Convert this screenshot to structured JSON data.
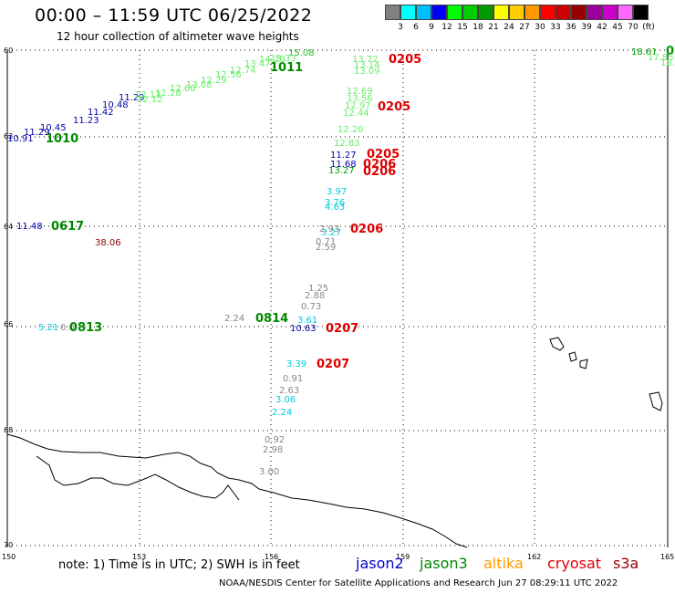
{
  "title": "00:00 – 11:59 UTC 06/25/2022",
  "subtitle": "12 hour collection of altimeter wave heights",
  "scale": {
    "colors": [
      "#808080",
      "#00ffff",
      "#00bfff",
      "#0000ff",
      "#00ff00",
      "#00cc00",
      "#009900",
      "#ffff00",
      "#ffcc00",
      "#ff9900",
      "#ff0000",
      "#cc0000",
      "#990000",
      "#990099",
      "#cc00cc",
      "#ff66ff",
      "#000000"
    ],
    "labels": [
      "3",
      "6",
      "9",
      "12",
      "15",
      "18",
      "21",
      "24",
      "27",
      "30",
      "33",
      "36",
      "39",
      "42",
      "45",
      "70",
      "(ft)"
    ]
  },
  "axes": {
    "lat_labels": [
      "60",
      "62",
      "64",
      "66",
      "68",
      "70"
    ],
    "lon_labels": [
      "150",
      "153",
      "156",
      "159",
      "162",
      "165"
    ]
  },
  "map_labels": [
    {
      "t": "15.08",
      "c": "#22bb22"
    },
    {
      "t": "13.72",
      "c": "#66ee66"
    },
    {
      "t": "0205",
      "c": "#dd0000",
      "s": 1
    },
    {
      "t": "13.14",
      "c": "#66ee66"
    },
    {
      "t": "13.09",
      "c": "#66ee66"
    },
    {
      "t": "1011",
      "c": "#008800",
      "s": 1
    },
    {
      "t": "18.61",
      "c": "#009900"
    },
    {
      "t": "0",
      "c": "#009900",
      "s": 1
    },
    {
      "t": "17.85",
      "c": "#66ee66"
    },
    {
      "t": "18.",
      "c": "#66ee66"
    },
    {
      "t": "12.69",
      "c": "#66ee66"
    },
    {
      "t": "13.56",
      "c": "#66ee66"
    },
    {
      "t": "12.97",
      "c": "#66ee66"
    },
    {
      "t": "12.44",
      "c": "#66ee66"
    },
    {
      "t": "0205",
      "c": "#dd0000",
      "s": 1
    },
    {
      "t": "12.20",
      "c": "#66ee66"
    },
    {
      "t": "12.83",
      "c": "#66ee66"
    },
    {
      "t": "11.27",
      "c": "#0000aa"
    },
    {
      "t": "0205",
      "c": "#dd0000",
      "s": 1
    },
    {
      "t": "11.68",
      "c": "#0000aa"
    },
    {
      "t": "0206",
      "c": "#dd0000",
      "s": 1
    },
    {
      "t": "13.27",
      "c": "#009900"
    },
    {
      "t": "0206",
      "c": "#dd0000",
      "s": 1
    },
    {
      "t": "3.97",
      "c": "#00ccdd"
    },
    {
      "t": "3.76",
      "c": "#00ccdd"
    },
    {
      "t": "4.63",
      "c": "#00ccdd"
    },
    {
      "t": "2.93",
      "c": "#888888"
    },
    {
      "t": "3.27",
      "c": "#00ccdd"
    },
    {
      "t": "0206",
      "c": "#dd0000",
      "s": 1
    },
    {
      "t": "0.71",
      "c": "#888888"
    },
    {
      "t": "2.59",
      "c": "#888888"
    },
    {
      "t": "11.48",
      "c": "#0000aa"
    },
    {
      "t": "0617",
      "c": "#008800",
      "s": 1
    },
    {
      "t": "38.06",
      "c": "#880000"
    },
    {
      "t": "1.25",
      "c": "#888888"
    },
    {
      "t": "2.88",
      "c": "#888888"
    },
    {
      "t": "0.73",
      "c": "#888888"
    },
    {
      "t": "2.24",
      "c": "#888888"
    },
    {
      "t": "0814",
      "c": "#008800",
      "s": 1
    },
    {
      "t": "3.61",
      "c": "#00ccdd"
    },
    {
      "t": "10.63",
      "c": "#0000aa"
    },
    {
      "t": "0207",
      "c": "#dd0000",
      "s": 1
    },
    {
      "t": "5.21",
      "c": "#00ccdd"
    },
    {
      "t": "0.0",
      "c": "#888888"
    },
    {
      "t": "0813",
      "c": "#008800",
      "s": 1
    },
    {
      "t": "3.39",
      "c": "#00ccdd"
    },
    {
      "t": "0207",
      "c": "#dd0000",
      "s": 1
    },
    {
      "t": "0.91",
      "c": "#888888"
    },
    {
      "t": "2.63",
      "c": "#888888"
    },
    {
      "t": "3.06",
      "c": "#00ccdd"
    },
    {
      "t": "2.24",
      "c": "#00ccdd"
    },
    {
      "t": "0.92",
      "c": "#888888"
    },
    {
      "t": "2.98",
      "c": "#888888"
    },
    {
      "t": "3.00",
      "c": "#888888"
    },
    {
      "t": "10.91",
      "c": "#0000aa"
    },
    {
      "t": "1010",
      "c": "#008800",
      "s": 1
    },
    {
      "t": "11.29",
      "c": "#0000aa"
    },
    {
      "t": "10.45",
      "c": "#0000aa"
    },
    {
      "t": "11.23",
      "c": "#0000aa"
    },
    {
      "t": "11.42",
      "c": "#0000aa"
    },
    {
      "t": "10.48",
      "c": "#0000aa"
    },
    {
      "t": "11.29",
      "c": "#0000aa"
    },
    {
      "t": "12.13",
      "c": "#66ee66"
    },
    {
      "t": "12.12",
      "c": "#66ee66"
    },
    {
      "t": "12.28",
      "c": "#66ee66"
    },
    {
      "t": "12.60",
      "c": "#66ee66"
    },
    {
      "t": "13.08",
      "c": "#66ee66"
    },
    {
      "t": "12.29",
      "c": "#66ee66"
    },
    {
      "t": "12.56",
      "c": "#66ee66"
    },
    {
      "t": "12.74",
      "c": "#66ee66"
    },
    {
      "t": "13.47",
      "c": "#66ee66"
    },
    {
      "t": "14.20",
      "c": "#66ee66"
    },
    {
      "t": "13.33",
      "c": "#66ee66"
    }
  ],
  "note": "note:  1) Time is in UTC;  2) SWH is in feet",
  "legend": [
    {
      "name": "jason2",
      "color": "#0000cc"
    },
    {
      "name": "jason3",
      "color": "#008800"
    },
    {
      "name": "altika",
      "color": "#ff9900"
    },
    {
      "name": "cryosat",
      "color": "#dd0000"
    },
    {
      "name": "s3a",
      "color": "#990000"
    }
  ],
  "footer": "NOAA/NESDIS Center for Satellite Applications and Research    Jun 27 08:29:11 UTC 2022"
}
